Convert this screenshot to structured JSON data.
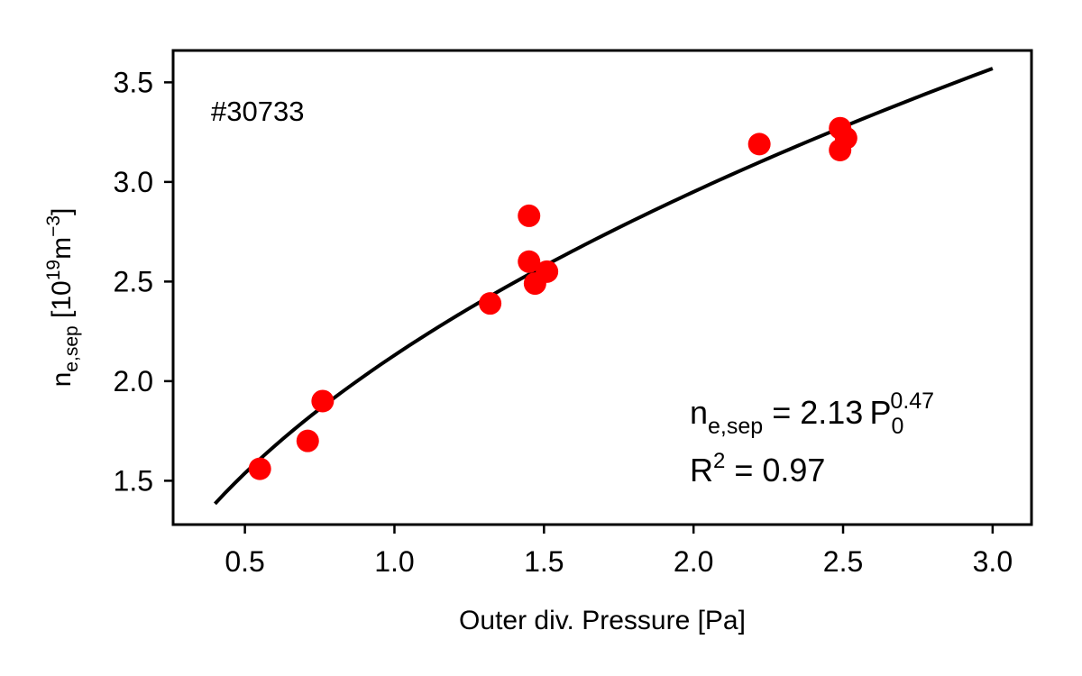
{
  "chart_data": {
    "type": "scatter",
    "xlabel": "Outer div. Pressure [Pa]",
    "ylabel": {
      "main": "n",
      "sub": "e,sep",
      "unit_prefix": " [10",
      "unit_exp": "19",
      "unit_mid": "m",
      "unit_exp2": "−3",
      "unit_suffix": "]"
    },
    "xlim": [
      0.26,
      3.13
    ],
    "ylim": [
      1.28,
      3.66
    ],
    "xticks": [
      0.5,
      1.0,
      1.5,
      2.0,
      2.5,
      3.0
    ],
    "xtick_labels": [
      "0.5",
      "1.0",
      "1.5",
      "2.0",
      "2.5",
      "3.0"
    ],
    "yticks": [
      1.5,
      2.0,
      2.5,
      3.0,
      3.5
    ],
    "ytick_labels": [
      "1.5",
      "2.0",
      "2.5",
      "3.0",
      "3.5"
    ],
    "grid": false,
    "annotation_shot": "#30733",
    "points": {
      "color": "#ff0000",
      "x": [
        0.55,
        0.71,
        0.76,
        1.32,
        1.45,
        1.45,
        1.47,
        1.51,
        2.22,
        2.49,
        2.49,
        2.51
      ],
      "y": [
        1.56,
        1.7,
        1.9,
        2.39,
        2.83,
        2.6,
        2.49,
        2.55,
        3.19,
        3.27,
        3.16,
        3.22
      ]
    },
    "fit": {
      "color": "#000000",
      "coefficient": 2.13,
      "exponent": 0.47,
      "x_range": [
        0.4,
        3.0
      ]
    },
    "equation": {
      "lhs_main": "n",
      "lhs_sub": "e,sep",
      "rhs": " = 2.13 P",
      "p_sub": "0",
      "p_sup": "0.47"
    },
    "r2": {
      "main": "R",
      "sup": "2",
      "rest": " = 0.97"
    }
  }
}
